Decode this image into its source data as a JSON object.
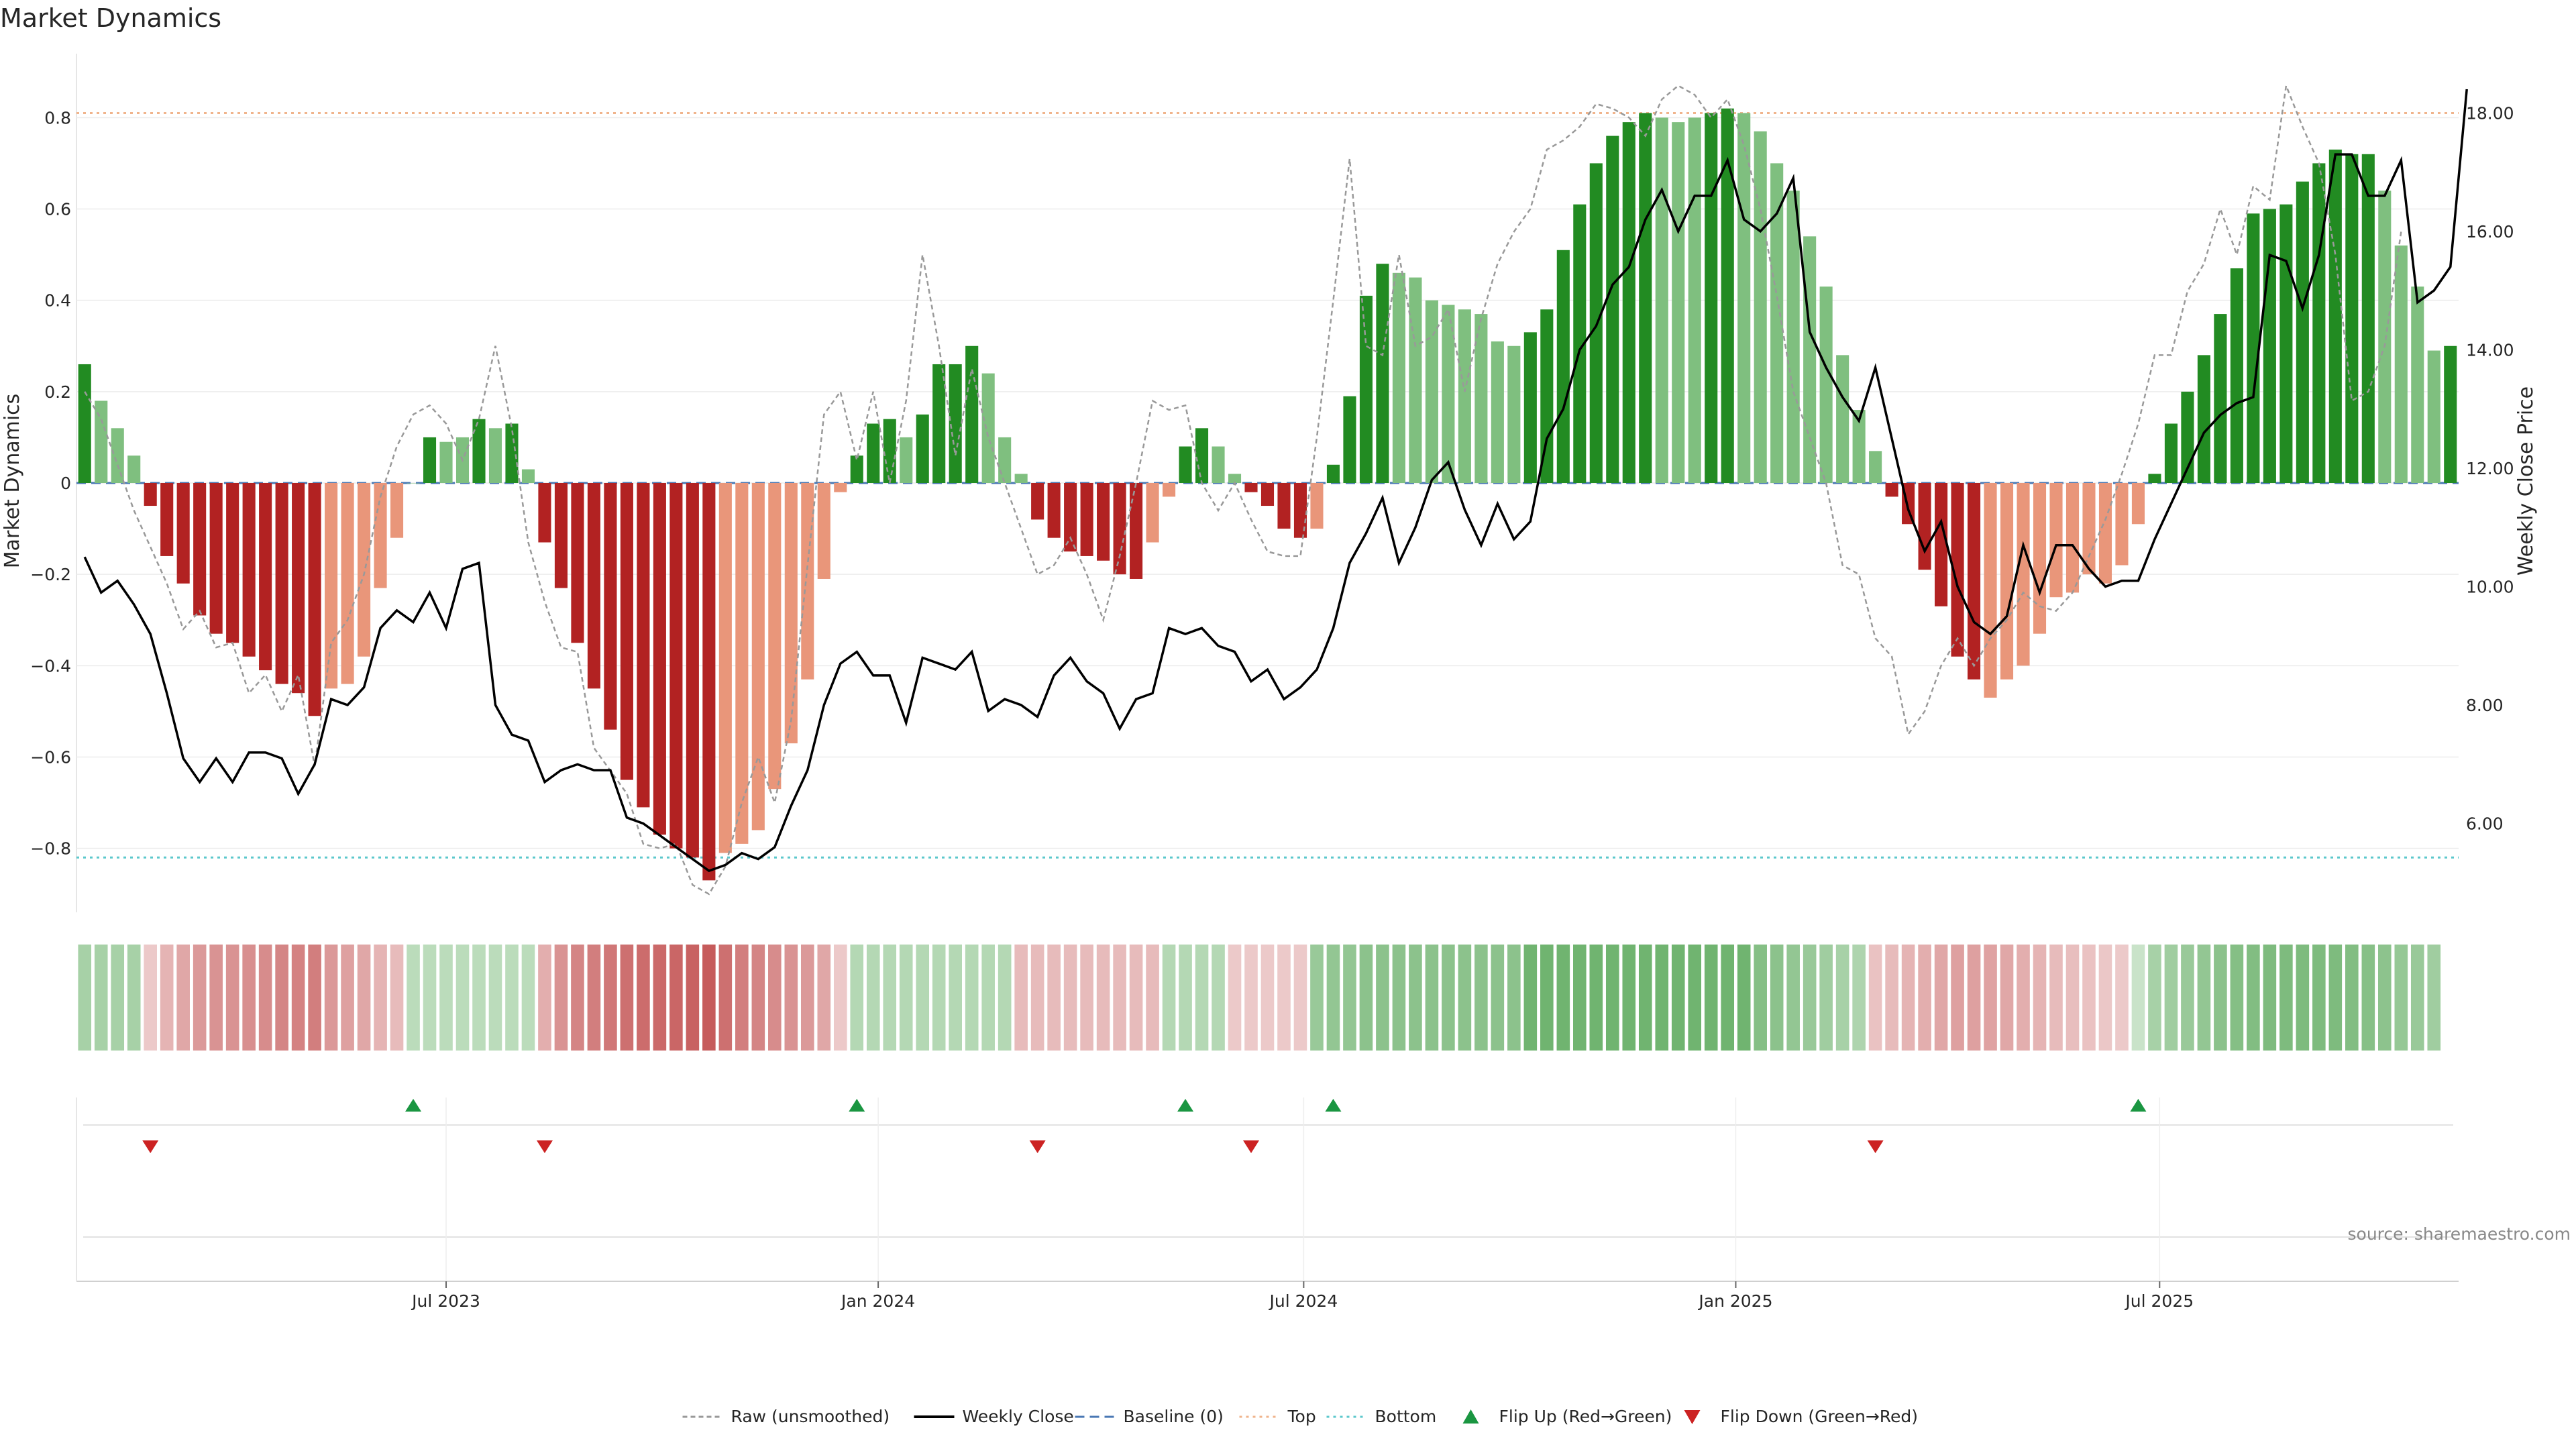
{
  "chart_data": {
    "type": "bar",
    "title": "Market Dynamics",
    "ylabel": "Market Dynamics",
    "y2label": "Weekly Close Price",
    "ylim": [
      -0.94,
      0.94
    ],
    "y2lim": [
      4.5,
      19.0
    ],
    "yticks": [
      -0.8,
      -0.6,
      -0.4,
      -0.2,
      0,
      0.2,
      0.4,
      0.6,
      0.8
    ],
    "y2ticks": [
      6.0,
      8.0,
      10.0,
      12.0,
      14.0,
      16.0,
      18.0
    ],
    "ytick_labels": [
      "−0.8",
      "−0.6",
      "−0.4",
      "−0.2",
      "0",
      "0.2",
      "0.4",
      "0.6",
      "0.8"
    ],
    "y2tick_labels": [
      "6.00",
      "8.00",
      "10.00",
      "12.00",
      "14.00",
      "16.00",
      "18.00"
    ],
    "x_tick_labels": [
      "Jul 2023",
      "Jan 2024",
      "Jul 2024",
      "Jan 2025",
      "Jul 2025"
    ],
    "x_tick_weeks": [
      22.5,
      48.8,
      74.7,
      101.0,
      126.8
    ],
    "top_level": 0.81,
    "bottom_level": -0.82,
    "baseline": 0,
    "source": "source: sharemaestro.com",
    "colors": {
      "strong_up": "#228b22",
      "weak_up": "#7fbf7f",
      "strong_down": "#b22222",
      "weak_down": "#e9967a",
      "raw": "#999999",
      "close": "#000000",
      "baseline": "#4a78b4",
      "top": "#f0b48c",
      "bottom": "#5cc8cc",
      "flip_up": "#1a9641",
      "flip_down": "#cc2222"
    },
    "bars": {
      "values": [
        0.26,
        0.18,
        0.12,
        0.06,
        -0.05,
        -0.16,
        -0.22,
        -0.29,
        -0.33,
        -0.35,
        -0.38,
        -0.41,
        -0.44,
        -0.46,
        -0.51,
        -0.45,
        -0.44,
        -0.38,
        -0.23,
        -0.12,
        0.0,
        0.1,
        0.09,
        0.1,
        0.14,
        0.12,
        0.13,
        0.03,
        -0.13,
        -0.23,
        -0.35,
        -0.45,
        -0.54,
        -0.65,
        -0.71,
        -0.77,
        -0.8,
        -0.82,
        -0.87,
        -0.81,
        -0.79,
        -0.76,
        -0.67,
        -0.57,
        -0.43,
        -0.21,
        -0.02,
        0.06,
        0.13,
        0.14,
        0.1,
        0.15,
        0.26,
        0.26,
        0.3,
        0.24,
        0.1,
        0.02,
        -0.08,
        -0.12,
        -0.15,
        -0.16,
        -0.17,
        -0.2,
        -0.21,
        -0.13,
        -0.03,
        0.08,
        0.12,
        0.08,
        0.02,
        -0.02,
        -0.05,
        -0.1,
        -0.12,
        -0.1,
        0.04,
        0.19,
        0.41,
        0.48,
        0.46,
        0.45,
        0.4,
        0.39,
        0.38,
        0.37,
        0.31,
        0.3,
        0.33,
        0.38,
        0.51,
        0.61,
        0.7,
        0.76,
        0.79,
        0.81,
        0.8,
        0.79,
        0.8,
        0.81,
        0.82,
        0.81,
        0.77,
        0.7,
        0.64,
        0.54,
        0.43,
        0.28,
        0.16,
        0.07,
        -0.03,
        -0.09,
        -0.19,
        -0.27,
        -0.38,
        -0.43,
        -0.47,
        -0.43,
        -0.4,
        -0.33,
        -0.25,
        -0.24,
        -0.2,
        -0.22,
        -0.18,
        -0.09,
        0.02,
        0.13,
        0.2,
        0.28,
        0.37,
        0.47,
        0.59,
        0.6,
        0.61,
        0.66,
        0.7,
        0.73,
        0.72,
        0.72,
        0.64,
        0.52,
        0.43,
        0.29,
        0.3
      ],
      "category": [
        "su",
        "wu",
        "wu",
        "wu",
        "sd",
        "sd",
        "sd",
        "sd",
        "sd",
        "sd",
        "sd",
        "sd",
        "sd",
        "sd",
        "sd",
        "wd",
        "wd",
        "wd",
        "wd",
        "wd",
        "wu",
        "su",
        "wu",
        "wu",
        "su",
        "wu",
        "su",
        "wu",
        "sd",
        "sd",
        "sd",
        "sd",
        "sd",
        "sd",
        "sd",
        "sd",
        "sd",
        "sd",
        "sd",
        "wd",
        "wd",
        "wd",
        "wd",
        "wd",
        "wd",
        "wd",
        "wd",
        "su",
        "su",
        "su",
        "wu",
        "su",
        "su",
        "su",
        "su",
        "wu",
        "wu",
        "wu",
        "sd",
        "sd",
        "sd",
        "sd",
        "sd",
        "sd",
        "sd",
        "wd",
        "wd",
        "su",
        "su",
        "wu",
        "wu",
        "sd",
        "sd",
        "sd",
        "sd",
        "wd",
        "su",
        "su",
        "su",
        "su",
        "wu",
        "wu",
        "wu",
        "wu",
        "wu",
        "wu",
        "wu",
        "wu",
        "su",
        "su",
        "su",
        "su",
        "su",
        "su",
        "su",
        "su",
        "wu",
        "wu",
        "wu",
        "su",
        "su",
        "wu",
        "wu",
        "wu",
        "wu",
        "wu",
        "wu",
        "wu",
        "wu",
        "wu",
        "sd",
        "sd",
        "sd",
        "sd",
        "sd",
        "sd",
        "wd",
        "wd",
        "wd",
        "wd",
        "wd",
        "wd",
        "wd",
        "wd",
        "wd",
        "wd",
        "su",
        "su",
        "su",
        "su",
        "su",
        "su",
        "su",
        "su",
        "su",
        "su",
        "su",
        "su",
        "su",
        "su",
        "wu",
        "wu",
        "wu",
        "wu",
        "su"
      ]
    },
    "series": [
      {
        "name": "Raw (unsmoothed)",
        "values": [
          0.2,
          0.14,
          0.04,
          -0.06,
          -0.14,
          -0.22,
          -0.32,
          -0.28,
          -0.36,
          -0.35,
          -0.46,
          -0.42,
          -0.5,
          -0.42,
          -0.62,
          -0.35,
          -0.3,
          -0.2,
          -0.03,
          0.08,
          0.15,
          0.17,
          0.13,
          0.05,
          0.14,
          0.3,
          0.12,
          -0.13,
          -0.26,
          -0.36,
          -0.37,
          -0.58,
          -0.63,
          -0.68,
          -0.79,
          -0.8,
          -0.79,
          -0.88,
          -0.9,
          -0.84,
          -0.7,
          -0.6,
          -0.7,
          -0.52,
          -0.18,
          0.15,
          0.2,
          0.05,
          0.2,
          0.0,
          0.18,
          0.5,
          0.3,
          0.06,
          0.25,
          0.1,
          0.0,
          -0.1,
          -0.2,
          -0.18,
          -0.12,
          -0.2,
          -0.3,
          -0.16,
          0.0,
          0.18,
          0.16,
          0.17,
          0.0,
          -0.06,
          0.0,
          -0.08,
          -0.15,
          -0.16,
          -0.16,
          0.1,
          0.4,
          0.71,
          0.3,
          0.28,
          0.5,
          0.3,
          0.32,
          0.38,
          0.2,
          0.36,
          0.48,
          0.55,
          0.6,
          0.73,
          0.75,
          0.78,
          0.83,
          0.82,
          0.8,
          0.76,
          0.84,
          0.87,
          0.85,
          0.8,
          0.84,
          0.74,
          0.6,
          0.41,
          0.2,
          0.1,
          0.0,
          -0.18,
          -0.2,
          -0.34,
          -0.38,
          -0.55,
          -0.5,
          -0.4,
          -0.34,
          -0.4,
          -0.34,
          -0.3,
          -0.24,
          -0.27,
          -0.28,
          -0.24,
          -0.16,
          -0.08,
          0.02,
          0.13,
          0.28,
          0.28,
          0.42,
          0.48,
          0.6,
          0.5,
          0.65,
          0.62,
          0.87,
          0.78,
          0.7,
          0.5,
          0.18,
          0.2,
          0.3,
          0.55
        ]
      },
      {
        "name": "Weekly Close",
        "values": [
          10.5,
          9.9,
          10.1,
          9.7,
          9.2,
          8.2,
          7.1,
          6.7,
          7.1,
          6.7,
          7.2,
          7.2,
          7.1,
          6.5,
          7.0,
          8.1,
          8.0,
          8.3,
          9.3,
          9.6,
          9.4,
          9.9,
          9.3,
          10.3,
          10.4,
          8.0,
          7.5,
          7.4,
          6.7,
          6.9,
          7.0,
          6.9,
          6.9,
          6.1,
          6.0,
          5.8,
          5.6,
          5.4,
          5.2,
          5.3,
          5.5,
          5.4,
          5.6,
          6.3,
          6.9,
          8.0,
          8.7,
          8.9,
          8.5,
          8.5,
          7.7,
          8.8,
          8.7,
          8.6,
          8.9,
          7.9,
          8.1,
          8.0,
          7.8,
          8.5,
          8.8,
          8.4,
          8.2,
          7.6,
          8.1,
          8.2,
          9.3,
          9.2,
          9.3,
          9.0,
          8.9,
          8.4,
          8.6,
          8.1,
          8.3,
          8.6,
          9.3,
          10.4,
          10.9,
          11.5,
          10.4,
          11.0,
          11.8,
          12.1,
          11.3,
          10.7,
          11.4,
          10.8,
          11.1,
          12.5,
          13.0,
          14.0,
          14.4,
          15.1,
          15.4,
          16.2,
          16.7,
          16.0,
          16.6,
          16.6,
          17.2,
          16.2,
          16.0,
          16.3,
          16.9,
          14.3,
          13.7,
          13.2,
          12.8,
          13.7,
          12.5,
          11.3,
          10.6,
          11.1,
          10.0,
          9.4,
          9.2,
          9.5,
          10.7,
          9.9,
          10.7,
          10.7,
          10.3,
          10.0,
          10.1,
          10.1,
          10.8,
          11.4,
          12.0,
          12.6,
          12.9,
          13.1,
          13.2,
          15.6,
          15.5,
          14.7,
          15.6,
          17.3,
          17.3,
          16.6,
          16.6,
          17.2,
          14.8,
          15.0,
          15.4,
          18.4
        ]
      }
    ],
    "regime_strip": {
      "values": [
        0.45,
        0.45,
        0.45,
        0.45,
        -0.2,
        -0.35,
        -0.45,
        -0.55,
        -0.6,
        -0.6,
        -0.62,
        -0.65,
        -0.7,
        -0.72,
        -0.75,
        -0.55,
        -0.5,
        -0.45,
        -0.35,
        -0.3,
        0.3,
        0.3,
        0.3,
        0.3,
        0.3,
        0.3,
        0.3,
        0.3,
        -0.4,
        -0.6,
        -0.7,
        -0.75,
        -0.8,
        -0.85,
        -0.88,
        -0.9,
        -0.92,
        -0.95,
        -1.0,
        -0.85,
        -0.75,
        -0.7,
        -0.65,
        -0.6,
        -0.55,
        -0.45,
        -0.2,
        0.35,
        0.35,
        0.35,
        0.35,
        0.35,
        0.35,
        0.35,
        0.35,
        0.35,
        0.35,
        -0.3,
        -0.3,
        -0.3,
        -0.3,
        -0.3,
        -0.3,
        -0.3,
        -0.3,
        -0.3,
        0.35,
        0.35,
        0.35,
        0.35,
        -0.2,
        -0.2,
        -0.2,
        -0.2,
        -0.2,
        0.55,
        0.6,
        0.6,
        0.65,
        0.65,
        0.65,
        0.65,
        0.65,
        0.65,
        0.65,
        0.65,
        0.65,
        0.65,
        0.85,
        0.85,
        0.85,
        0.85,
        0.85,
        0.85,
        0.85,
        0.85,
        0.85,
        0.85,
        0.85,
        0.85,
        0.85,
        0.85,
        0.7,
        0.65,
        0.6,
        0.55,
        0.5,
        0.45,
        0.4,
        -0.25,
        -0.3,
        -0.35,
        -0.4,
        -0.45,
        -0.5,
        -0.5,
        -0.48,
        -0.45,
        -0.4,
        -0.35,
        -0.3,
        -0.28,
        -0.25,
        -0.22,
        -0.2,
        0.2,
        0.45,
        0.5,
        0.55,
        0.6,
        0.65,
        0.7,
        0.72,
        0.75,
        0.75,
        0.75,
        0.75,
        0.75,
        0.72,
        0.68,
        0.64,
        0.58,
        0.55,
        0.5
      ]
    },
    "flips": {
      "up": [
        20,
        47,
        67,
        76,
        125
      ],
      "down": [
        4,
        28,
        58,
        71,
        109
      ]
    },
    "legend": [
      {
        "name": "Raw (unsmoothed)",
        "kind": "raw"
      },
      {
        "name": "Weekly Close",
        "kind": "close"
      },
      {
        "name": "Baseline (0)",
        "kind": "baseline"
      },
      {
        "name": "Top",
        "kind": "top"
      },
      {
        "name": "Bottom",
        "kind": "bottom"
      },
      {
        "name": "Flip Up (Red→Green)",
        "kind": "flip_up"
      },
      {
        "name": "Flip Down (Green→Red)",
        "kind": "flip_down"
      }
    ]
  }
}
